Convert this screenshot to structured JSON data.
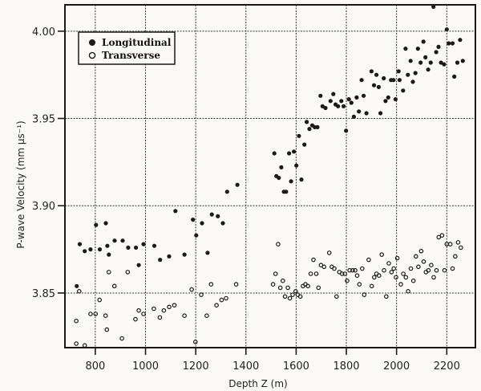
{
  "chart_data": {
    "type": "scatter",
    "title": "",
    "xlabel": "Depth Z (m)",
    "ylabel": "P-wave Velocity (mm μs⁻¹)",
    "xlim": [
      679,
      2314
    ],
    "ylim": [
      3.8187,
      4.0151
    ],
    "xticks": [
      800,
      1000,
      1200,
      1400,
      1600,
      1800,
      2000,
      2200
    ],
    "xtick_labels": [
      "800",
      "1000",
      "1200",
      "1400",
      "1600",
      "1800",
      "2000",
      "2200"
    ],
    "yticks": [
      3.85,
      3.9,
      3.95,
      4.0
    ],
    "ytick_labels": [
      "3.85",
      "3.90",
      "3.95",
      "4.00"
    ],
    "grid": true,
    "legend_position": "upper left",
    "series": [
      {
        "name": "Longitudinal",
        "marker": "filled-circle",
        "x": [
          726,
          738,
          758,
          781,
          803,
          818,
          842,
          848,
          854,
          877,
          909,
          931,
          962,
          973,
          992,
          1035,
          1058,
          1094,
          1119,
          1155,
          1189,
          1202,
          1225,
          1247,
          1264,
          1288,
          1308,
          1325,
          1366,
          1513,
          1521,
          1531,
          1541,
          1551,
          1560,
          1572,
          1580,
          1591,
          1601,
          1611,
          1621,
          1633,
          1642,
          1653,
          1664,
          1674,
          1685,
          1697,
          1705,
          1717,
          1737,
          1748,
          1757,
          1767,
          1780,
          1789,
          1799,
          1810,
          1820,
          1830,
          1841,
          1850,
          1861,
          1869,
          1880,
          1900,
          1910,
          1920,
          1929,
          1936,
          1949,
          1956,
          1967,
          1978,
          1988,
          1996,
          2008,
          2012,
          2026,
          2036,
          2045,
          2056,
          2065,
          2075,
          2085,
          2096,
          2107,
          2115,
          2126,
          2136,
          2147,
          2158,
          2167,
          2177,
          2189,
          2200,
          2208,
          2223,
          2230,
          2242,
          2253,
          2264
        ],
        "y": [
          3.854,
          3.878,
          3.874,
          3.875,
          3.889,
          3.875,
          3.89,
          3.877,
          3.872,
          3.88,
          3.88,
          3.876,
          3.876,
          3.866,
          3.878,
          3.877,
          3.869,
          3.871,
          3.897,
          3.872,
          3.892,
          3.883,
          3.89,
          3.873,
          3.895,
          3.894,
          3.89,
          3.908,
          3.912,
          3.93,
          3.917,
          3.916,
          3.922,
          3.908,
          3.908,
          3.93,
          3.914,
          3.931,
          3.923,
          3.94,
          3.915,
          3.935,
          3.948,
          3.944,
          3.946,
          3.945,
          3.945,
          3.963,
          3.957,
          3.956,
          3.96,
          3.964,
          3.958,
          3.957,
          3.96,
          3.957,
          3.943,
          3.961,
          3.959,
          3.951,
          3.962,
          3.954,
          3.972,
          3.963,
          3.953,
          3.977,
          3.969,
          3.975,
          3.968,
          3.953,
          3.973,
          3.96,
          3.962,
          3.972,
          3.972,
          3.961,
          3.977,
          3.972,
          3.966,
          3.99,
          3.975,
          3.983,
          3.971,
          3.976,
          3.99,
          3.982,
          3.994,
          3.985,
          3.978,
          3.982,
          4.014,
          3.988,
          3.991,
          3.982,
          3.981,
          4.001,
          3.993,
          3.993,
          3.974,
          3.982,
          3.995,
          3.983
        ]
      },
      {
        "name": "Transverse",
        "marker": "open-circle",
        "x": [
          724,
          736,
          724,
          758,
          781,
          801,
          817,
          841,
          846,
          854,
          876,
          906,
          929,
          960,
          973,
          992,
          1033,
          1057,
          1073,
          1094,
          1115,
          1155,
          1184,
          1199,
          1222,
          1244,
          1261,
          1283,
          1303,
          1321,
          1361,
          1508,
          1518,
          1528,
          1537,
          1547,
          1556,
          1567,
          1575,
          1586,
          1598,
          1606,
          1617,
          1627,
          1637,
          1647,
          1658,
          1669,
          1680,
          1689,
          1699,
          1711,
          1732,
          1742,
          1752,
          1761,
          1772,
          1783,
          1794,
          1803,
          1813,
          1825,
          1835,
          1843,
          1852,
          1863,
          1871,
          1889,
          1901,
          1911,
          1920,
          1930,
          1941,
          1950,
          1959,
          1969,
          1980,
          1989,
          1998,
          2003,
          2017,
          2027,
          2037,
          2046,
          2057,
          2067,
          2077,
          2087,
          2098,
          2108,
          2117,
          2127,
          2138,
          2148,
          2159,
          2168,
          2181,
          2191,
          2200,
          2214,
          2223,
          2234,
          2245,
          2256
        ],
        "y": [
          3.834,
          3.851,
          3.821,
          3.82,
          3.838,
          3.838,
          3.846,
          3.837,
          3.829,
          3.862,
          3.854,
          3.824,
          3.862,
          3.835,
          3.84,
          3.838,
          3.841,
          3.836,
          3.84,
          3.842,
          3.843,
          3.837,
          3.852,
          3.822,
          3.849,
          3.837,
          3.855,
          3.843,
          3.846,
          3.847,
          3.855,
          3.855,
          3.861,
          3.878,
          3.853,
          3.857,
          3.848,
          3.853,
          3.847,
          3.849,
          3.851,
          3.849,
          3.848,
          3.854,
          3.855,
          3.854,
          3.861,
          3.869,
          3.861,
          3.853,
          3.866,
          3.865,
          3.873,
          3.865,
          3.864,
          3.848,
          3.862,
          3.861,
          3.861,
          3.857,
          3.863,
          3.863,
          3.863,
          3.86,
          3.855,
          3.864,
          3.849,
          3.869,
          3.854,
          3.859,
          3.861,
          3.86,
          3.872,
          3.863,
          3.848,
          3.867,
          3.862,
          3.864,
          3.859,
          3.87,
          3.855,
          3.861,
          3.859,
          3.851,
          3.864,
          3.857,
          3.871,
          3.865,
          3.874,
          3.868,
          3.862,
          3.863,
          3.866,
          3.859,
          3.863,
          3.882,
          3.883,
          3.863,
          3.878,
          3.878,
          3.864,
          3.871,
          3.879,
          3.876
        ]
      }
    ]
  },
  "legend": {
    "items": [
      {
        "label": "Longitudinal",
        "marker": "filled-circle"
      },
      {
        "label": "Transverse",
        "marker": "open-circle"
      }
    ]
  },
  "colors": {
    "ink": "#1a1a1a",
    "grid": "#3a3a3a",
    "background": "#fbfaf6"
  }
}
